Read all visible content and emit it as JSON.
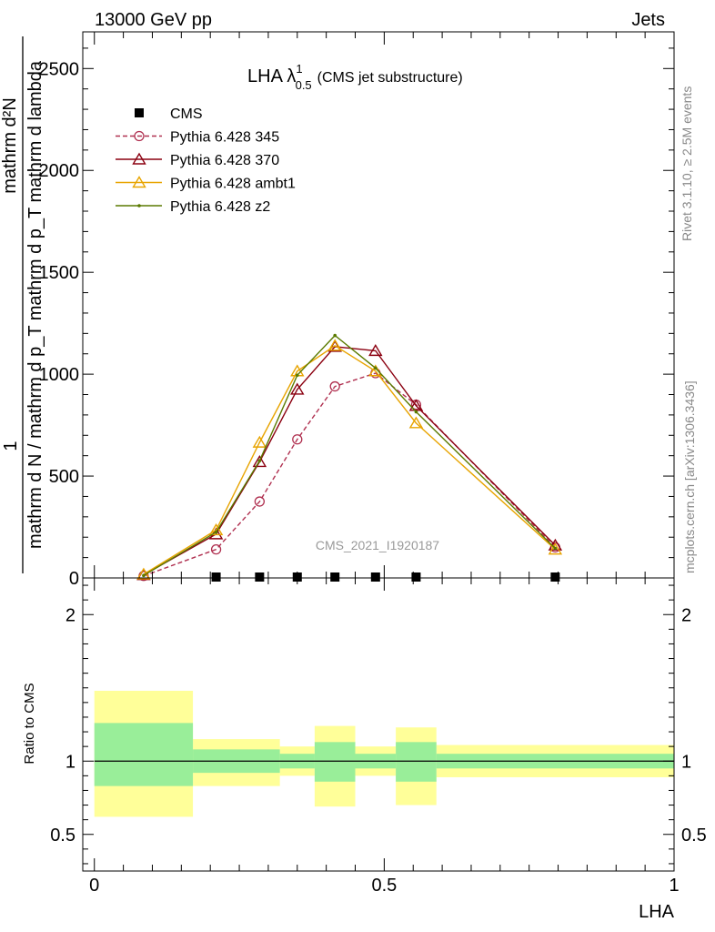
{
  "header": {
    "left": "13000 GeV pp",
    "right": "Jets"
  },
  "side_text": {
    "rivet": "Rivet 3.1.10, ≥ 2.5M events",
    "mcplots": "mcplots.cern.ch [arXiv:1306.3436]"
  },
  "watermark": "CMS_2021_I1920187",
  "chart_data": [
    {
      "type": "line",
      "panel": "main",
      "title": "LHA λ",
      "title_sup": "1",
      "title_sub": "0.5",
      "title_suffix": "(CMS jet substructure)",
      "ylabel_top": "1",
      "ylabel_num": "mathrm d²N",
      "ylabel_den": "mathrm d N / mathrm d p_T mathrm d p_T mathrm d lambda",
      "ylim": [
        0,
        2680
      ],
      "yticks": [
        0,
        500,
        1000,
        1500,
        2000,
        2500
      ],
      "xlim": [
        -0.02,
        1.0
      ],
      "legend_position": "top-left",
      "series": [
        {
          "name": "CMS",
          "color": "#000000",
          "marker": "square",
          "x": [
            0.21,
            0.285,
            0.35,
            0.415,
            0.485,
            0.555,
            0.795
          ],
          "values": [
            0,
            0,
            0,
            0,
            0,
            0,
            0
          ]
        },
        {
          "name": "Pythia 6.428 345",
          "color": "#b03050",
          "marker": "circle-open",
          "dash": "dashed",
          "x": [
            0.085,
            0.21,
            0.285,
            0.35,
            0.415,
            0.485,
            0.555,
            0.795
          ],
          "values": [
            10,
            140,
            375,
            680,
            940,
            1005,
            850,
            150
          ]
        },
        {
          "name": "Pythia 6.428 370",
          "color": "#8b0010",
          "marker": "triangle-open",
          "dash": "solid",
          "x": [
            0.085,
            0.21,
            0.285,
            0.35,
            0.415,
            0.485,
            0.555,
            0.795
          ],
          "values": [
            15,
            215,
            570,
            925,
            1135,
            1115,
            845,
            160
          ]
        },
        {
          "name": "Pythia 6.428 ambt1",
          "color": "#e8a400",
          "marker": "triangle-open",
          "dash": "solid",
          "x": [
            0.085,
            0.21,
            0.285,
            0.35,
            0.415,
            0.485,
            0.555,
            0.795
          ],
          "values": [
            18,
            235,
            665,
            1015,
            1140,
            1015,
            760,
            140
          ]
        },
        {
          "name": "Pythia 6.428 z2",
          "color": "#5a7a00",
          "marker": "dot",
          "dash": "solid",
          "x": [
            0.085,
            0.21,
            0.285,
            0.35,
            0.415,
            0.485,
            0.555,
            0.795
          ],
          "values": [
            12,
            225,
            575,
            995,
            1190,
            1030,
            815,
            145
          ]
        }
      ]
    },
    {
      "type": "area",
      "panel": "ratio",
      "ylabel": "Ratio to CMS",
      "xlabel": "LHA",
      "ylim": [
        0.25,
        2.25
      ],
      "yticks": [
        0.5,
        1,
        2
      ],
      "ytick_labels": [
        "0.5",
        "1",
        "2"
      ],
      "xticks": [
        0,
        0.5,
        1
      ],
      "xtick_labels": [
        "0",
        "0.5",
        "1"
      ],
      "reference_line": 1,
      "bins": [
        {
          "x0": 0.0,
          "x1": 0.17,
          "yellow": [
            0.62,
            1.48
          ],
          "green": [
            0.83,
            1.26
          ]
        },
        {
          "x0": 0.17,
          "x1": 0.32,
          "yellow": [
            0.83,
            1.15
          ],
          "green": [
            0.92,
            1.08
          ]
        },
        {
          "x0": 0.32,
          "x1": 0.38,
          "yellow": [
            0.9,
            1.1
          ],
          "green": [
            0.95,
            1.05
          ]
        },
        {
          "x0": 0.38,
          "x1": 0.45,
          "yellow": [
            0.69,
            1.24
          ],
          "green": [
            0.86,
            1.13
          ]
        },
        {
          "x0": 0.45,
          "x1": 0.52,
          "yellow": [
            0.9,
            1.1
          ],
          "green": [
            0.95,
            1.05
          ]
        },
        {
          "x0": 0.52,
          "x1": 0.59,
          "yellow": [
            0.7,
            1.23
          ],
          "green": [
            0.86,
            1.13
          ]
        },
        {
          "x0": 0.59,
          "x1": 1.0,
          "yellow": [
            0.89,
            1.11
          ],
          "green": [
            0.95,
            1.05
          ]
        }
      ]
    }
  ]
}
